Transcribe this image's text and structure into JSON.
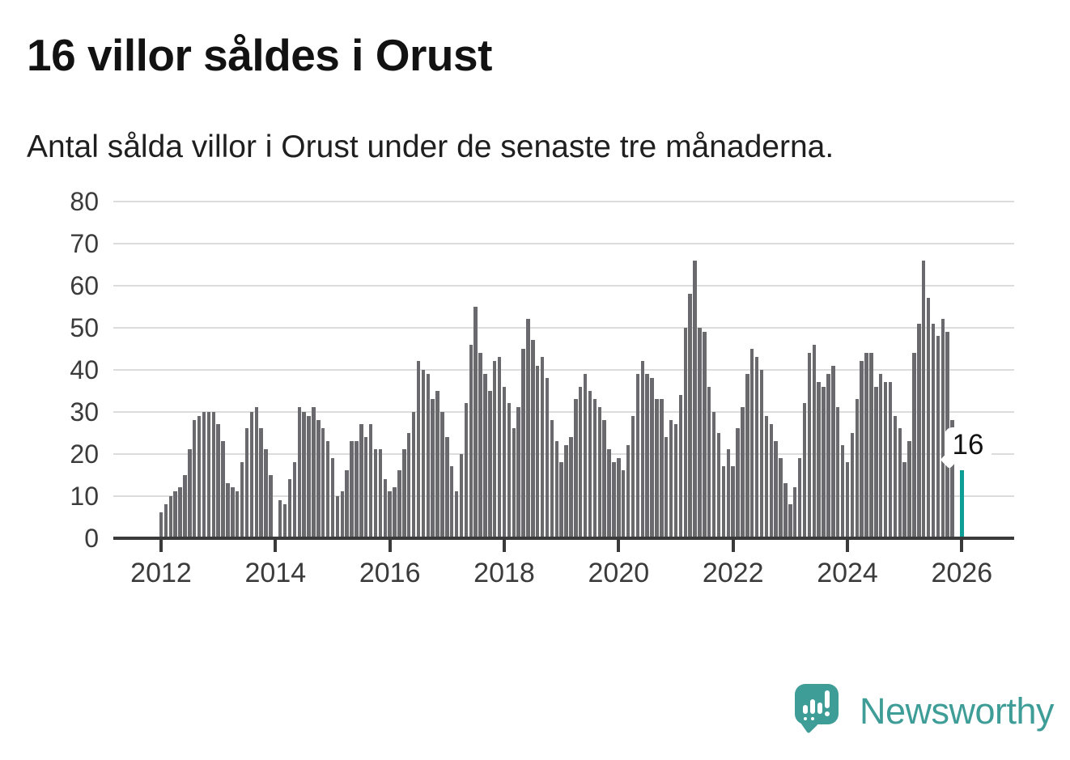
{
  "title": "16 villor såldes i Orust",
  "subtitle": "Antal sålda villor i Orust under de senaste tre månaderna.",
  "chart_data": {
    "type": "bar",
    "title": "16 villor såldes i Orust",
    "subtitle": "Antal sålda villor i Orust under de senaste tre månaderna.",
    "ylabel": "",
    "xlabel": "",
    "ylim": [
      0,
      80
    ],
    "y_ticks": [
      0,
      10,
      20,
      30,
      40,
      50,
      60,
      70,
      80
    ],
    "x_tick_labels": [
      "2012",
      "2014",
      "2016",
      "2018",
      "2020",
      "2022",
      "2024",
      "2026"
    ],
    "grid": true,
    "start_month": "2012-01",
    "months_per_bar": 1,
    "window": "rolling 3 months",
    "bar_color": "#6a6a6e",
    "values": [
      6,
      8,
      10,
      11,
      12,
      15,
      21,
      28,
      29,
      30,
      30,
      30,
      27,
      23,
      13,
      12,
      11,
      18,
      26,
      30,
      31,
      26,
      21,
      15,
      0,
      9,
      8,
      14,
      18,
      31,
      30,
      29,
      31,
      28,
      26,
      23,
      19,
      10,
      11,
      16,
      23,
      23,
      27,
      24,
      27,
      21,
      21,
      14,
      11,
      12,
      16,
      21,
      25,
      30,
      42,
      40,
      39,
      33,
      35,
      30,
      24,
      17,
      11,
      20,
      32,
      46,
      55,
      44,
      39,
      35,
      42,
      43,
      36,
      32,
      26,
      31,
      45,
      52,
      47,
      41,
      43,
      38,
      28,
      23,
      18,
      22,
      24,
      33,
      36,
      39,
      35,
      33,
      31,
      28,
      21,
      18,
      19,
      16,
      22,
      29,
      39,
      42,
      39,
      38,
      33,
      33,
      24,
      28,
      27,
      34,
      50,
      58,
      66,
      50,
      49,
      36,
      30,
      25,
      17,
      21,
      17,
      26,
      31,
      39,
      45,
      43,
      40,
      29,
      27,
      23,
      19,
      13,
      8,
      12,
      19,
      32,
      44,
      46,
      37,
      36,
      39,
      41,
      31,
      22,
      18,
      25,
      33,
      42,
      44,
      44,
      36,
      39,
      37,
      37,
      29,
      26,
      18,
      23,
      44,
      51,
      66,
      57,
      51,
      48,
      52,
      49,
      28,
      0,
      16
    ],
    "highlight": {
      "index": 168,
      "value": 16,
      "label": "16",
      "color": "#0d9e96"
    },
    "legend": null
  },
  "annotation": {
    "label": "16"
  },
  "branding": {
    "name": "Newsworthy",
    "color": "#3f9d98",
    "icon": "newsworthy-speech-bubble-chart-icon"
  },
  "colors": {
    "background": "#ffffff",
    "bar": "#6a6a6e",
    "highlight": "#0d9e96",
    "gridline": "#dcdcdc",
    "axis": "#3a3a3a",
    "tick_label": "#3b3b3b",
    "title": "#121212",
    "subtitle": "#1f1f1f"
  }
}
